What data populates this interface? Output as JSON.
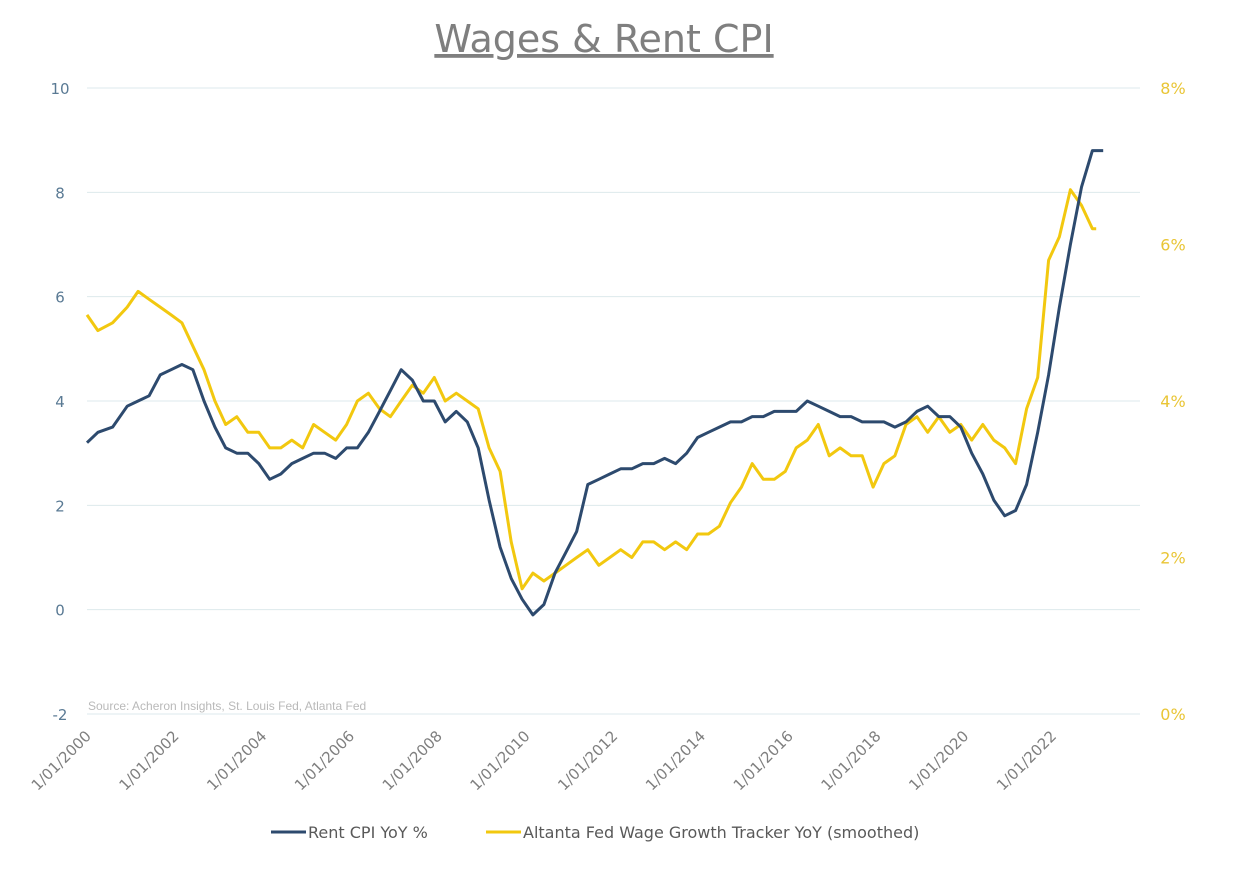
{
  "colors": {
    "rent": "#2d4a6e",
    "wage": "#f2c80f",
    "left_axis_text": "#5a7a94",
    "right_axis_text": "#e9c535",
    "grid": "#dde9ec",
    "title": "#7f7f7f",
    "source": "#b9b9b9"
  },
  "chart_data": {
    "type": "line",
    "title": "Wages & Rent CPI",
    "source": "Source: Acheron Insights, St. Louis Fed, Atlanta Fed",
    "x_ticks": [
      "1/01/2000",
      "1/01/2002",
      "1/01/2004",
      "1/01/2006",
      "1/01/2008",
      "1/01/2010",
      "1/01/2012",
      "1/01/2014",
      "1/01/2016",
      "1/01/2018",
      "1/01/2020",
      "1/01/2022"
    ],
    "xlim": [
      "2000-01-01",
      "2024-01-01"
    ],
    "y_left": {
      "ylim": [
        -2,
        10
      ],
      "ticks": [
        "-2",
        "0",
        "2",
        "4",
        "6",
        "8",
        "10"
      ]
    },
    "y_right": {
      "ylim": [
        0,
        8
      ],
      "ticks": [
        "0%",
        "2%",
        "4%",
        "6%",
        "8%"
      ]
    },
    "grid": true,
    "legend_position": "bottom",
    "series": [
      {
        "name": "Rent CPI YoY %",
        "axis": "left",
        "points": [
          [
            "2000-01",
            3.2
          ],
          [
            "2000-04",
            3.4
          ],
          [
            "2000-08",
            3.5
          ],
          [
            "2000-12",
            3.9
          ],
          [
            "2001-03",
            4.0
          ],
          [
            "2001-06",
            4.1
          ],
          [
            "2001-09",
            4.5
          ],
          [
            "2001-12",
            4.6
          ],
          [
            "2002-03",
            4.7
          ],
          [
            "2002-06",
            4.6
          ],
          [
            "2002-09",
            4.0
          ],
          [
            "2002-12",
            3.5
          ],
          [
            "2003-03",
            3.1
          ],
          [
            "2003-06",
            3.0
          ],
          [
            "2003-09",
            3.0
          ],
          [
            "2003-12",
            2.8
          ],
          [
            "2004-03",
            2.5
          ],
          [
            "2004-06",
            2.6
          ],
          [
            "2004-09",
            2.8
          ],
          [
            "2004-12",
            2.9
          ],
          [
            "2005-03",
            3.0
          ],
          [
            "2005-06",
            3.0
          ],
          [
            "2005-09",
            2.9
          ],
          [
            "2005-12",
            3.1
          ],
          [
            "2006-03",
            3.1
          ],
          [
            "2006-06",
            3.4
          ],
          [
            "2006-09",
            3.8
          ],
          [
            "2006-12",
            4.2
          ],
          [
            "2007-03",
            4.6
          ],
          [
            "2007-06",
            4.4
          ],
          [
            "2007-09",
            4.0
          ],
          [
            "2007-12",
            4.0
          ],
          [
            "2008-03",
            3.6
          ],
          [
            "2008-06",
            3.8
          ],
          [
            "2008-09",
            3.6
          ],
          [
            "2008-12",
            3.1
          ],
          [
            "2009-03",
            2.1
          ],
          [
            "2009-06",
            1.2
          ],
          [
            "2009-09",
            0.6
          ],
          [
            "2009-12",
            0.2
          ],
          [
            "2010-03",
            -0.1
          ],
          [
            "2010-06",
            0.1
          ],
          [
            "2010-09",
            0.7
          ],
          [
            "2010-12",
            1.1
          ],
          [
            "2011-03",
            1.5
          ],
          [
            "2011-06",
            2.4
          ],
          [
            "2011-09",
            2.5
          ],
          [
            "2011-12",
            2.6
          ],
          [
            "2012-03",
            2.7
          ],
          [
            "2012-06",
            2.7
          ],
          [
            "2012-09",
            2.8
          ],
          [
            "2012-12",
            2.8
          ],
          [
            "2013-03",
            2.9
          ],
          [
            "2013-06",
            2.8
          ],
          [
            "2013-09",
            3.0
          ],
          [
            "2013-12",
            3.3
          ],
          [
            "2014-03",
            3.4
          ],
          [
            "2014-06",
            3.5
          ],
          [
            "2014-09",
            3.6
          ],
          [
            "2014-12",
            3.6
          ],
          [
            "2015-03",
            3.7
          ],
          [
            "2015-06",
            3.7
          ],
          [
            "2015-09",
            3.8
          ],
          [
            "2015-12",
            3.8
          ],
          [
            "2016-03",
            3.8
          ],
          [
            "2016-06",
            4.0
          ],
          [
            "2016-09",
            3.9
          ],
          [
            "2016-12",
            3.8
          ],
          [
            "2017-03",
            3.7
          ],
          [
            "2017-06",
            3.7
          ],
          [
            "2017-09",
            3.6
          ],
          [
            "2017-12",
            3.6
          ],
          [
            "2018-03",
            3.6
          ],
          [
            "2018-06",
            3.5
          ],
          [
            "2018-09",
            3.6
          ],
          [
            "2018-12",
            3.8
          ],
          [
            "2019-03",
            3.9
          ],
          [
            "2019-06",
            3.7
          ],
          [
            "2019-09",
            3.7
          ],
          [
            "2019-12",
            3.5
          ],
          [
            "2020-03",
            3.0
          ],
          [
            "2020-06",
            2.6
          ],
          [
            "2020-09",
            2.1
          ],
          [
            "2020-12",
            1.8
          ],
          [
            "2021-03",
            1.9
          ],
          [
            "2021-06",
            2.4
          ],
          [
            "2021-09",
            3.4
          ],
          [
            "2021-12",
            4.5
          ],
          [
            "2022-03",
            5.8
          ],
          [
            "2022-06",
            7.0
          ],
          [
            "2022-09",
            8.1
          ],
          [
            "2022-12",
            8.8
          ],
          [
            "2023-03",
            8.8
          ]
        ]
      },
      {
        "name": "Altanta Fed Wage Growth Tracker YoY (smoothed)",
        "axis": "right",
        "points": [
          [
            "2000-01",
            5.1
          ],
          [
            "2000-04",
            4.9
          ],
          [
            "2000-08",
            5.0
          ],
          [
            "2000-12",
            5.2
          ],
          [
            "2001-03",
            5.4
          ],
          [
            "2001-06",
            5.3
          ],
          [
            "2001-09",
            5.2
          ],
          [
            "2001-12",
            5.1
          ],
          [
            "2002-03",
            5.0
          ],
          [
            "2002-06",
            4.7
          ],
          [
            "2002-09",
            4.4
          ],
          [
            "2002-12",
            4.0
          ],
          [
            "2003-03",
            3.7
          ],
          [
            "2003-06",
            3.8
          ],
          [
            "2003-09",
            3.6
          ],
          [
            "2003-12",
            3.6
          ],
          [
            "2004-03",
            3.4
          ],
          [
            "2004-06",
            3.4
          ],
          [
            "2004-09",
            3.5
          ],
          [
            "2004-12",
            3.4
          ],
          [
            "2005-03",
            3.7
          ],
          [
            "2005-06",
            3.6
          ],
          [
            "2005-09",
            3.5
          ],
          [
            "2005-12",
            3.7
          ],
          [
            "2006-03",
            4.0
          ],
          [
            "2006-06",
            4.1
          ],
          [
            "2006-09",
            3.9
          ],
          [
            "2006-12",
            3.8
          ],
          [
            "2007-03",
            4.0
          ],
          [
            "2007-06",
            4.2
          ],
          [
            "2007-09",
            4.1
          ],
          [
            "2007-12",
            4.3
          ],
          [
            "2008-03",
            4.0
          ],
          [
            "2008-06",
            4.1
          ],
          [
            "2008-09",
            4.0
          ],
          [
            "2008-12",
            3.9
          ],
          [
            "2009-03",
            3.4
          ],
          [
            "2009-06",
            3.1
          ],
          [
            "2009-09",
            2.2
          ],
          [
            "2009-12",
            1.6
          ],
          [
            "2010-03",
            1.8
          ],
          [
            "2010-06",
            1.7
          ],
          [
            "2010-09",
            1.8
          ],
          [
            "2010-12",
            1.9
          ],
          [
            "2011-03",
            2.0
          ],
          [
            "2011-06",
            2.1
          ],
          [
            "2011-09",
            1.9
          ],
          [
            "2011-12",
            2.0
          ],
          [
            "2012-03",
            2.1
          ],
          [
            "2012-06",
            2.0
          ],
          [
            "2012-09",
            2.2
          ],
          [
            "2012-12",
            2.2
          ],
          [
            "2013-03",
            2.1
          ],
          [
            "2013-06",
            2.2
          ],
          [
            "2013-09",
            2.1
          ],
          [
            "2013-12",
            2.3
          ],
          [
            "2014-03",
            2.3
          ],
          [
            "2014-06",
            2.4
          ],
          [
            "2014-09",
            2.7
          ],
          [
            "2014-12",
            2.9
          ],
          [
            "2015-03",
            3.2
          ],
          [
            "2015-06",
            3.0
          ],
          [
            "2015-09",
            3.0
          ],
          [
            "2015-12",
            3.1
          ],
          [
            "2016-03",
            3.4
          ],
          [
            "2016-06",
            3.5
          ],
          [
            "2016-09",
            3.7
          ],
          [
            "2016-12",
            3.3
          ],
          [
            "2017-03",
            3.4
          ],
          [
            "2017-06",
            3.3
          ],
          [
            "2017-09",
            3.3
          ],
          [
            "2017-12",
            2.9
          ],
          [
            "2018-03",
            3.2
          ],
          [
            "2018-06",
            3.3
          ],
          [
            "2018-09",
            3.7
          ],
          [
            "2018-12",
            3.8
          ],
          [
            "2019-03",
            3.6
          ],
          [
            "2019-06",
            3.8
          ],
          [
            "2019-09",
            3.6
          ],
          [
            "2019-12",
            3.7
          ],
          [
            "2020-03",
            3.5
          ],
          [
            "2020-06",
            3.7
          ],
          [
            "2020-09",
            3.5
          ],
          [
            "2020-12",
            3.4
          ],
          [
            "2021-03",
            3.2
          ],
          [
            "2021-06",
            3.9
          ],
          [
            "2021-09",
            4.3
          ],
          [
            "2021-12",
            5.8
          ],
          [
            "2022-03",
            6.1
          ],
          [
            "2022-06",
            6.7
          ],
          [
            "2022-09",
            6.5
          ],
          [
            "2022-12",
            6.2
          ],
          [
            "2023-01",
            6.2
          ]
        ]
      }
    ]
  }
}
